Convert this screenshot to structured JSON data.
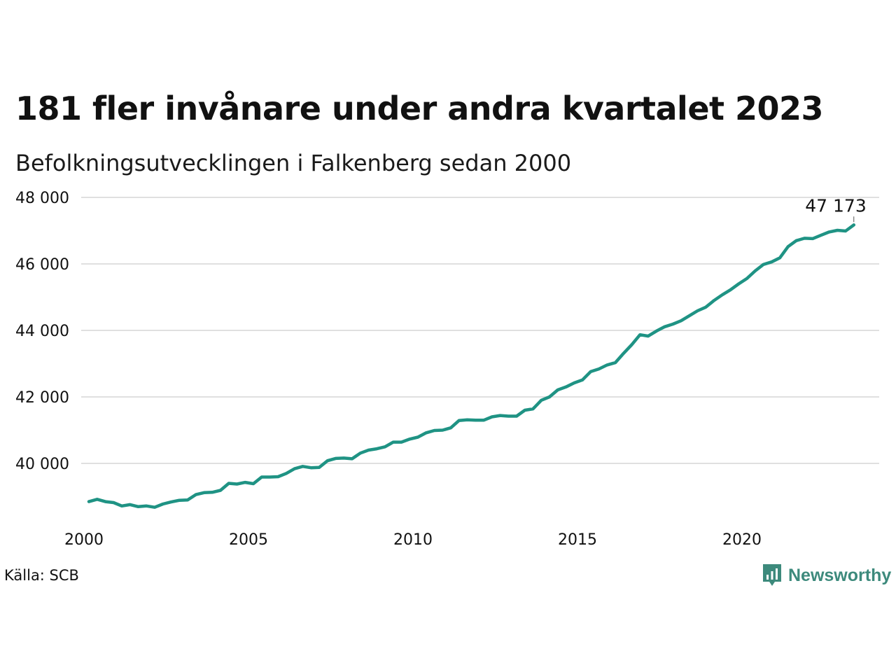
{
  "title": "181 fler invånare under andra kvartalet 2023",
  "subtitle": "Befolkningsutvecklingen i Falkenberg sedan 2000",
  "source": "Källa: SCB",
  "brand": {
    "name": "Newsworthy",
    "icon": "newsworthy-logo-icon",
    "color": "#3d8a7c"
  },
  "chart_data": {
    "type": "line",
    "title": "181 fler invånare under andra kvartalet 2023",
    "subtitle": "Befolkningsutvecklingen i Falkenberg sedan 2000",
    "xlabel": "",
    "ylabel": "",
    "xlim": [
      2000,
      2024
    ],
    "ylim": [
      38200,
      48000
    ],
    "x_ticks": [
      2000,
      2005,
      2010,
      2015,
      2020
    ],
    "x_tick_labels": [
      "2000",
      "2005",
      "2010",
      "2015",
      "2020"
    ],
    "y_ticks": [
      40000,
      42000,
      44000,
      46000,
      48000
    ],
    "y_tick_labels": [
      "40 000",
      "42 000",
      "44 000",
      "46 000",
      "48 000"
    ],
    "grid": true,
    "grid_color": "#e0e0e0",
    "line_color": "#1f9384",
    "end_label": "47 173",
    "series": [
      {
        "x": [
          2000.0,
          2000.25,
          2000.5,
          2000.75,
          2001.0,
          2001.25,
          2001.5,
          2001.75,
          2002.0,
          2002.25,
          2002.5,
          2002.75,
          2003.0,
          2003.25,
          2003.5,
          2003.75,
          2004.0,
          2004.25,
          2004.5,
          2004.75,
          2005.0,
          2005.25,
          2005.5,
          2005.75,
          2006.0,
          2006.25,
          2006.5,
          2006.75,
          2007.0,
          2007.25,
          2007.5,
          2007.75,
          2008.0,
          2008.25,
          2008.5,
          2008.75,
          2009.0,
          2009.25,
          2009.5,
          2009.75,
          2010.0,
          2010.25,
          2010.5,
          2010.75,
          2011.0,
          2011.25,
          2011.5,
          2011.75,
          2012.0,
          2012.25,
          2012.5,
          2012.75,
          2013.0,
          2013.25,
          2013.5,
          2013.75,
          2014.0,
          2014.25,
          2014.5,
          2014.75,
          2015.0,
          2015.25,
          2015.5,
          2015.75,
          2016.0,
          2016.25,
          2016.5,
          2016.75,
          2017.0,
          2017.25,
          2017.5,
          2017.75,
          2018.0,
          2018.25,
          2018.5,
          2018.75,
          2019.0,
          2019.25,
          2019.5,
          2019.75,
          2020.0,
          2020.25,
          2020.5,
          2020.75,
          2021.0,
          2021.25,
          2021.5,
          2021.75,
          2022.0,
          2022.25,
          2022.5,
          2022.75,
          2023.0,
          2023.25
        ],
        "values": [
          38850,
          38920,
          38850,
          38820,
          38720,
          38760,
          38700,
          38720,
          38680,
          38780,
          38840,
          38890,
          38900,
          39060,
          39120,
          39130,
          39190,
          39400,
          39380,
          39430,
          39390,
          39590,
          39590,
          39600,
          39700,
          39840,
          39910,
          39870,
          39880,
          40080,
          40150,
          40160,
          40140,
          40310,
          40400,
          40440,
          40500,
          40640,
          40640,
          40730,
          40790,
          40920,
          40990,
          41000,
          41070,
          41290,
          41310,
          41300,
          41300,
          41400,
          41440,
          41420,
          41420,
          41600,
          41640,
          41900,
          42000,
          42210,
          42300,
          42420,
          42510,
          42760,
          42840,
          42960,
          43030,
          43310,
          43570,
          43870,
          43830,
          43980,
          44110,
          44190,
          44290,
          44440,
          44590,
          44700,
          44900,
          45070,
          45220,
          45400,
          45560,
          45790,
          45980,
          46060,
          46180,
          46520,
          46700,
          46770,
          46760,
          46860,
          46960,
          47010,
          46990,
          47173
        ]
      }
    ]
  }
}
